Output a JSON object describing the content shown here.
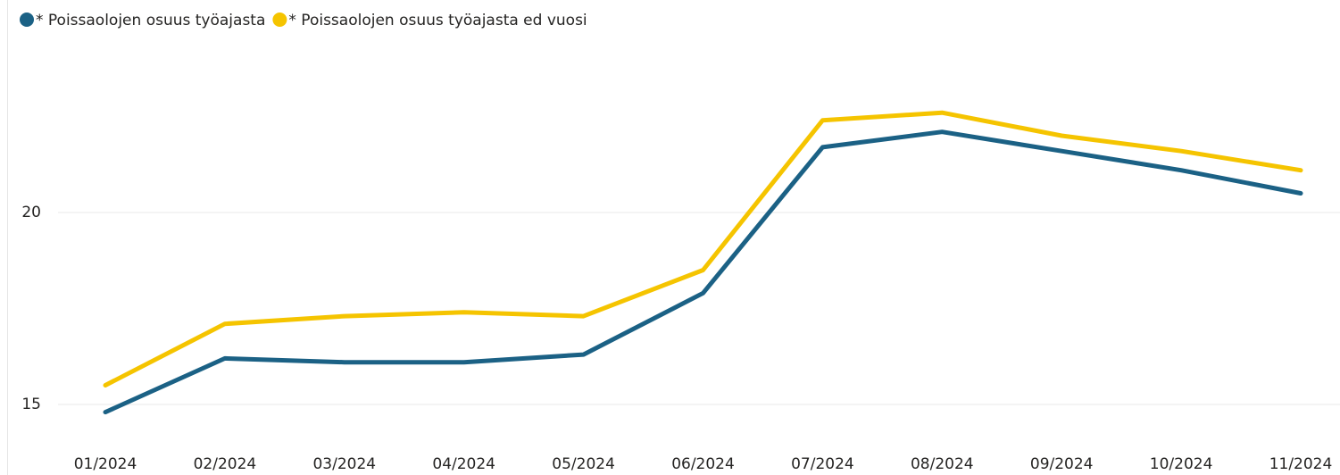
{
  "chart_data": {
    "type": "line",
    "categories": [
      "01/2024",
      "02/2024",
      "03/2024",
      "04/2024",
      "05/2024",
      "06/2024",
      "07/2024",
      "08/2024",
      "09/2024",
      "10/2024",
      "11/2024"
    ],
    "series": [
      {
        "name": "* Poissaolojen osuus työajasta",
        "color": "#1b6185",
        "values": [
          14.8,
          16.2,
          16.1,
          16.1,
          16.3,
          17.9,
          21.7,
          22.1,
          21.6,
          21.1,
          20.5
        ]
      },
      {
        "name": "* Poissaolojen osuus työajasta ed vuosi",
        "color": "#f5c400",
        "values": [
          15.5,
          17.1,
          17.3,
          17.4,
          17.3,
          18.5,
          22.4,
          22.6,
          22.0,
          21.6,
          21.1
        ]
      }
    ],
    "ylim": [
      14.2,
      24.2
    ],
    "yticks": [
      15,
      20
    ],
    "grid": true,
    "legend": "top-left"
  }
}
